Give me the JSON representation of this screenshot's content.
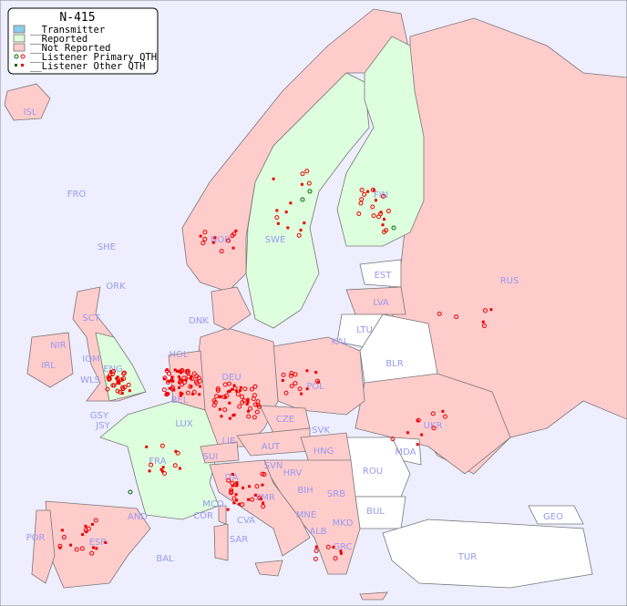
{
  "legend": {
    "title": "N-415",
    "items": [
      {
        "label": "__Transmitter",
        "color": "#88ccee"
      },
      {
        "label": "__Reported",
        "color": "#ddffdd"
      },
      {
        "label": "__Not Reported",
        "color": "#ffcccc"
      },
      {
        "label": "__Listener Primary QTH",
        "color_reported": "#006600",
        "color_not_reported": "#ee0000"
      },
      {
        "label": "__Listener Other QTH",
        "color_reported": "#006600",
        "color_not_reported": "#ee0000"
      }
    ]
  },
  "colors": {
    "sea": "#eeeeff",
    "reported": "#ddffdd",
    "not_reported": "#ffcccc",
    "no_data": "#ffffff",
    "label": "#9999ee",
    "border": "#888888"
  },
  "countries": [
    "ISL",
    "FRO",
    "SHE",
    "ORK",
    "NOR",
    "SWE",
    "FIN",
    "EST",
    "LVA",
    "RUS",
    "LTU",
    "DNK",
    "SCT",
    "NIR",
    "IOM",
    "ENG",
    "IRL",
    "WLS",
    "HOL",
    "BEL",
    "DEU",
    "POL",
    "KAL",
    "BLR",
    "GSY",
    "JSY",
    "LUX",
    "CZE",
    "SVK",
    "UKR",
    "FRA",
    "SUI",
    "LIE",
    "AUT",
    "HNG",
    "MDA",
    "SVN",
    "HRV",
    "ROU",
    "ITA",
    "BIH",
    "SRB",
    "MCO",
    "COR",
    "SMR",
    "AND",
    "CVA",
    "MNE",
    "MKD",
    "BUL",
    "GEO",
    "ALB",
    "POR",
    "ESP",
    "SAR",
    "BAL",
    "GRC",
    "TUR"
  ]
}
